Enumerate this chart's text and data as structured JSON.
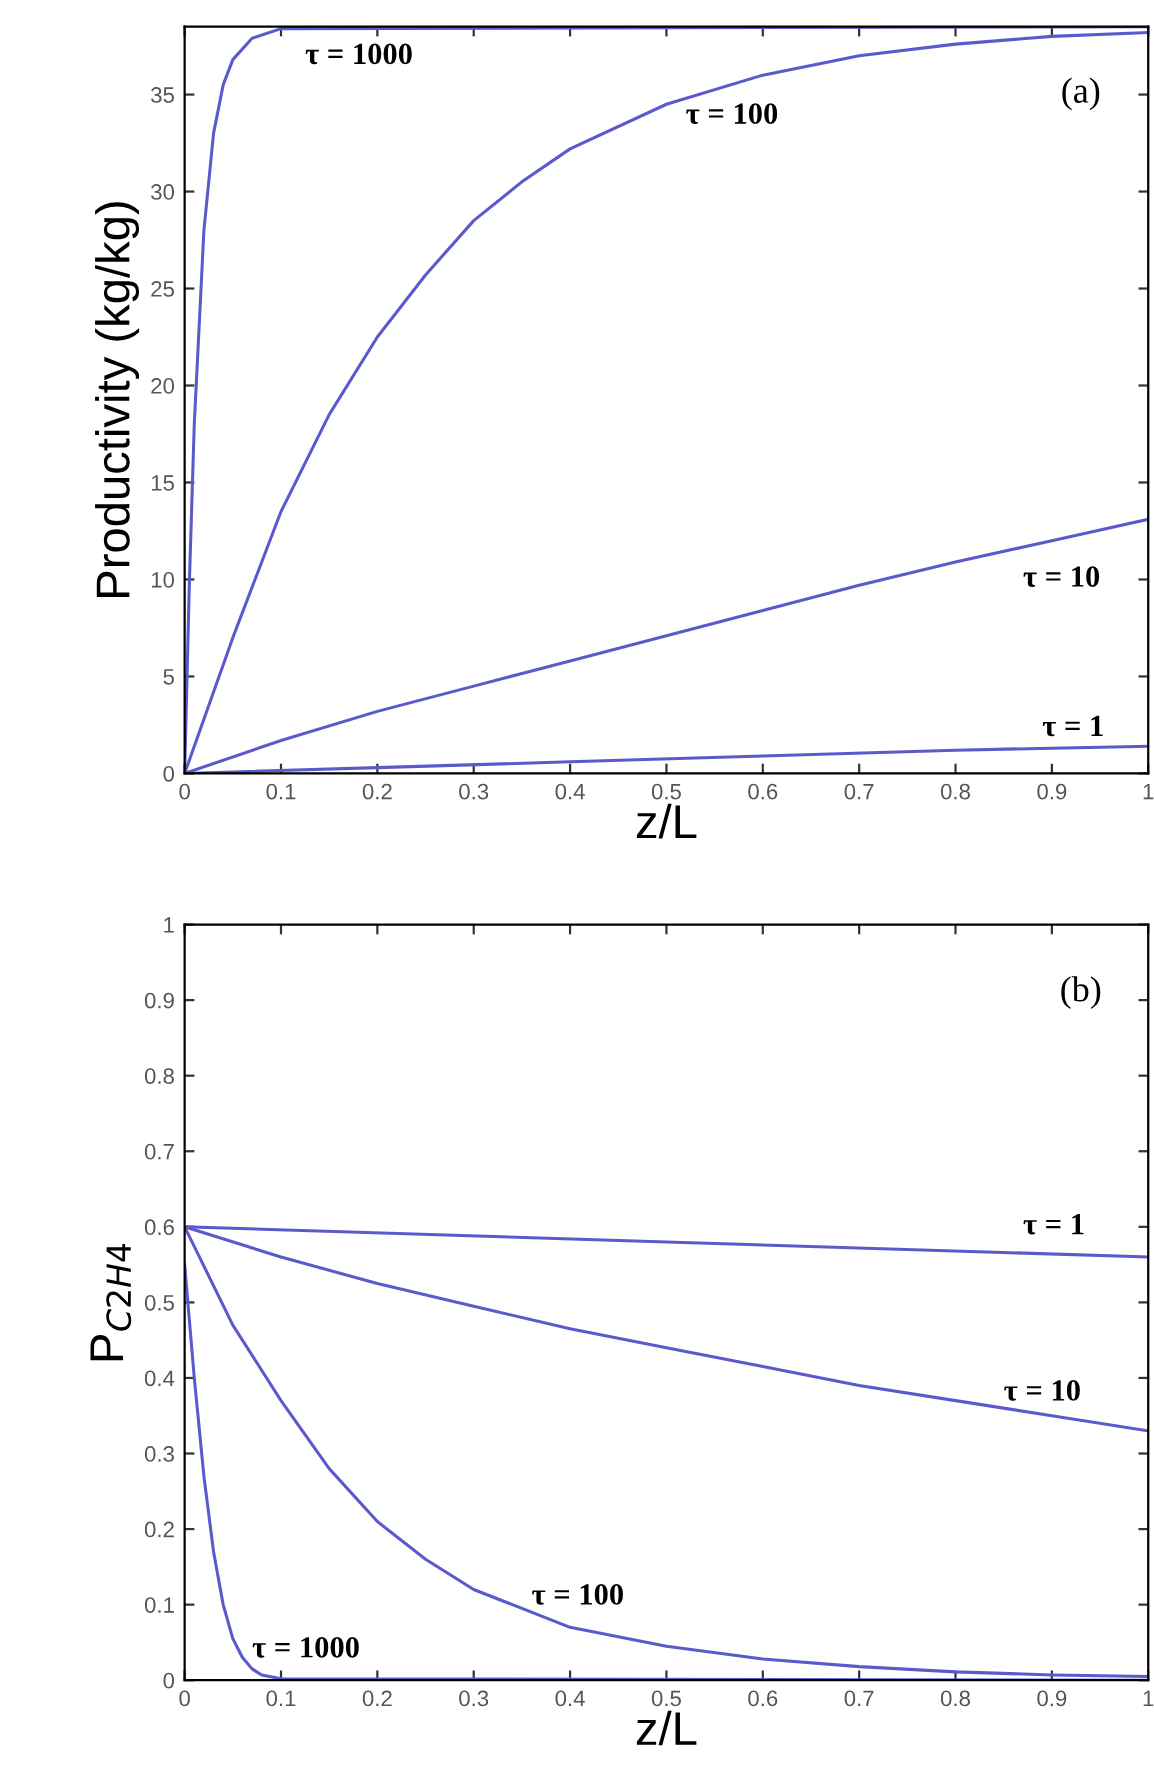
{
  "chart_data": [
    {
      "type": "line",
      "xlabel": "z/L",
      "ylabel": "Productivity (kg/kg)",
      "xlim": [
        0,
        1
      ],
      "ylim": [
        0,
        38.5
      ],
      "xticks": [
        0,
        0.1,
        0.2,
        0.3,
        0.4,
        0.5,
        0.6,
        0.7,
        0.8,
        0.9,
        1
      ],
      "yticks": [
        0,
        5,
        10,
        15,
        20,
        25,
        30,
        35
      ],
      "grid": false,
      "series": [
        {
          "name": "τ = 1000",
          "color": "#5a5acd",
          "x": [
            0,
            0.005,
            0.01,
            0.02,
            0.03,
            0.04,
            0.05,
            0.07,
            0.1,
            1
          ],
          "values": [
            0,
            10,
            18,
            28,
            33,
            35.5,
            36.8,
            37.9,
            38.4,
            38.5
          ]
        },
        {
          "name": "τ = 100",
          "color": "#5a5acd",
          "x": [
            0,
            0.05,
            0.1,
            0.15,
            0.2,
            0.25,
            0.3,
            0.35,
            0.4,
            0.5,
            0.6,
            0.7,
            0.8,
            0.9,
            1
          ],
          "values": [
            0,
            7,
            13.5,
            18.5,
            22.5,
            25.7,
            28.5,
            30.5,
            32.2,
            34.5,
            36,
            37,
            37.6,
            38,
            38.2
          ]
        },
        {
          "name": "τ = 10",
          "color": "#5a5acd",
          "x": [
            0,
            0.1,
            0.2,
            0.3,
            0.4,
            0.5,
            0.6,
            0.7,
            0.8,
            0.9,
            1
          ],
          "values": [
            0,
            1.7,
            3.2,
            4.5,
            5.8,
            7.1,
            8.4,
            9.7,
            10.9,
            12,
            13.1
          ]
        },
        {
          "name": "τ = 1",
          "color": "#5a5acd",
          "x": [
            0,
            0.2,
            0.4,
            0.6,
            0.8,
            1
          ],
          "values": [
            0,
            0.3,
            0.6,
            0.9,
            1.2,
            1.4
          ]
        }
      ],
      "annotations": [
        "(a)"
      ]
    },
    {
      "type": "line",
      "xlabel": "z/L",
      "ylabel": "P$_{C2H4}$",
      "xlim": [
        0,
        1
      ],
      "ylim": [
        0,
        1
      ],
      "xticks": [
        0,
        0.1,
        0.2,
        0.3,
        0.4,
        0.5,
        0.6,
        0.7,
        0.8,
        0.9,
        1
      ],
      "yticks": [
        0,
        0.1,
        0.2,
        0.3,
        0.4,
        0.5,
        0.6,
        0.7,
        0.8,
        0.9,
        1
      ],
      "grid": false,
      "series": [
        {
          "name": "τ = 1",
          "color": "#5a5acd",
          "x": [
            0,
            0.5,
            1
          ],
          "values": [
            0.6,
            0.58,
            0.56
          ]
        },
        {
          "name": "τ = 10",
          "color": "#5a5acd",
          "x": [
            0,
            0.1,
            0.2,
            0.3,
            0.4,
            0.5,
            0.6,
            0.7,
            0.8,
            0.9,
            1
          ],
          "values": [
            0.6,
            0.56,
            0.525,
            0.495,
            0.465,
            0.44,
            0.415,
            0.39,
            0.37,
            0.35,
            0.33
          ]
        },
        {
          "name": "τ = 100",
          "color": "#5a5acd",
          "x": [
            0,
            0.05,
            0.1,
            0.15,
            0.2,
            0.25,
            0.3,
            0.4,
            0.5,
            0.6,
            0.7,
            0.8,
            0.9,
            1
          ],
          "values": [
            0.6,
            0.47,
            0.37,
            0.28,
            0.21,
            0.16,
            0.12,
            0.07,
            0.045,
            0.028,
            0.018,
            0.011,
            0.007,
            0.005
          ]
        },
        {
          "name": "τ = 1000",
          "color": "#5a5acd",
          "x": [
            0,
            0.01,
            0.02,
            0.03,
            0.04,
            0.05,
            0.06,
            0.07,
            0.08,
            0.1,
            1
          ],
          "values": [
            0.55,
            0.4,
            0.27,
            0.17,
            0.1,
            0.055,
            0.03,
            0.015,
            0.007,
            0.002,
            0
          ]
        }
      ],
      "annotations": [
        "(b)"
      ]
    }
  ]
}
